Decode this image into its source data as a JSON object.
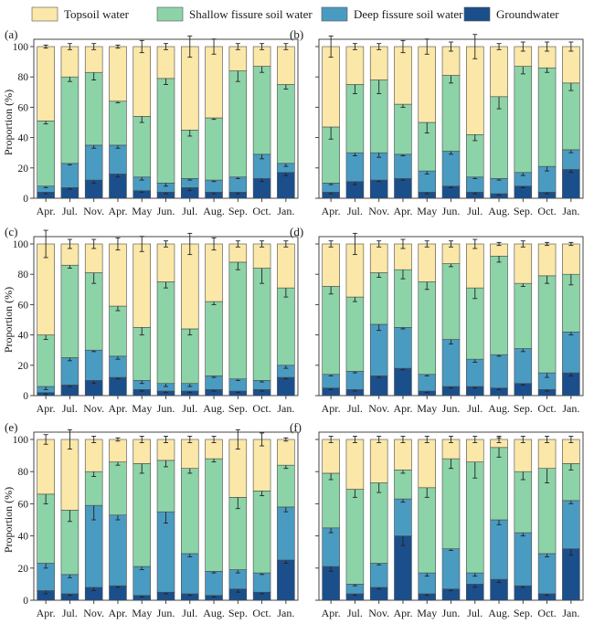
{
  "legend": {
    "items": [
      {
        "name": "Topsoil water",
        "color": "#FBE7A7"
      },
      {
        "name": "Shallow fissure soil water",
        "color": "#8DD3A8"
      },
      {
        "name": "Deep fissure soil water",
        "color": "#4A9BC1"
      },
      {
        "name": "Groundwater",
        "color": "#1B4F8C"
      }
    ]
  },
  "ylabel": "Proportion (%)",
  "categories": [
    "Apr.",
    "Jul.",
    "Nov.",
    "Apr.",
    "May",
    "Jun.",
    "Jul.",
    "Aug.",
    "Sep.",
    "Oct.",
    "Jan."
  ],
  "yticks": [
    "0",
    "20",
    "40",
    "60",
    "80",
    "100"
  ],
  "chart_data": [
    {
      "type": "bar",
      "stacked": true,
      "panel_label": "(a)",
      "ylim": [
        0,
        100
      ],
      "categories": [
        "Apr.",
        "Jul.",
        "Nov.",
        "Apr.",
        "May",
        "Jun.",
        "Jul.",
        "Aug.",
        "Sep.",
        "Oct.",
        "Jan."
      ],
      "series": [
        {
          "name": "Groundwater",
          "values": [
            4,
            7,
            12,
            16,
            5,
            4,
            7,
            4,
            4,
            13,
            17
          ],
          "errors": [
            1,
            1,
            2,
            2,
            1,
            1,
            2,
            1,
            1,
            2,
            2
          ]
        },
        {
          "name": "Deep fissure soil water",
          "values": [
            4,
            16,
            23,
            19,
            9,
            6,
            6,
            8,
            10,
            16,
            6
          ],
          "errors": [
            1,
            1,
            2,
            2,
            2,
            2,
            1,
            1,
            1,
            3,
            2
          ]
        },
        {
          "name": "Shallow fissure soil water",
          "values": [
            43,
            57,
            48,
            29,
            40,
            69,
            32,
            41,
            70,
            58,
            52
          ],
          "errors": [
            2,
            3,
            5,
            1,
            4,
            4,
            4,
            1,
            7,
            4,
            3
          ]
        },
        {
          "name": "Topsoil water",
          "values": [
            49,
            20,
            17,
            36,
            46,
            21,
            55,
            47,
            16,
            13,
            25
          ],
          "errors": [
            1,
            2,
            2,
            1,
            4,
            2,
            7,
            5,
            2,
            2,
            2
          ]
        }
      ]
    },
    {
      "type": "bar",
      "stacked": true,
      "panel_label": "(b)",
      "ylim": [
        0,
        100
      ],
      "categories": [
        "Apr.",
        "Jul.",
        "Nov.",
        "Apr.",
        "May",
        "Jun.",
        "Jul.",
        "Aug.",
        "Sep.",
        "Oct.",
        "Jan."
      ],
      "series": [
        {
          "name": "Groundwater",
          "values": [
            4,
            11,
            12,
            13,
            4,
            8,
            4,
            3,
            8,
            4,
            19
          ],
          "errors": [
            1,
            2,
            1,
            1,
            1,
            1,
            1,
            1,
            1,
            1,
            2
          ]
        },
        {
          "name": "Deep fissure soil water",
          "values": [
            6,
            19,
            18,
            16,
            14,
            23,
            10,
            10,
            9,
            17,
            13
          ],
          "errors": [
            1,
            2,
            3,
            1,
            2,
            2,
            1,
            1,
            2,
            3,
            2
          ]
        },
        {
          "name": "Shallow fissure soil water",
          "values": [
            37,
            45,
            48,
            33,
            32,
            50,
            28,
            54,
            70,
            65,
            44
          ],
          "errors": [
            8,
            6,
            9,
            2,
            7,
            5,
            4,
            8,
            5,
            3,
            5
          ]
        },
        {
          "name": "Topsoil water",
          "values": [
            53,
            25,
            22,
            38,
            50,
            19,
            58,
            33,
            13,
            14,
            24
          ],
          "errors": [
            7,
            2,
            2,
            4,
            5,
            3,
            8,
            2,
            3,
            3,
            3
          ]
        }
      ]
    },
    {
      "type": "bar",
      "stacked": true,
      "panel_label": "(c)",
      "ylim": [
        0,
        100
      ],
      "categories": [
        "Apr.",
        "Jul.",
        "Nov.",
        "Apr.",
        "May",
        "Jun.",
        "Jul.",
        "Aug.",
        "Sep.",
        "Oct.",
        "Jan."
      ],
      "series": [
        {
          "name": "Groundwater",
          "values": [
            2,
            7,
            10,
            12,
            4,
            3,
            3,
            4,
            3,
            4,
            12
          ],
          "errors": [
            1,
            1,
            2,
            1,
            1,
            1,
            1,
            1,
            1,
            1,
            1
          ]
        },
        {
          "name": "Deep fissure soil water",
          "values": [
            4,
            18,
            20,
            14,
            6,
            5,
            5,
            9,
            8,
            6,
            8
          ],
          "errors": [
            2,
            2,
            1,
            2,
            2,
            2,
            2,
            1,
            1,
            1,
            2
          ]
        },
        {
          "name": "Shallow fissure soil water",
          "values": [
            34,
            61,
            51,
            33,
            35,
            67,
            36,
            49,
            77,
            74,
            51
          ],
          "errors": [
            3,
            2,
            7,
            3,
            5,
            4,
            4,
            2,
            5,
            10,
            6
          ]
        },
        {
          "name": "Topsoil water",
          "values": [
            60,
            14,
            19,
            41,
            55,
            25,
            56,
            38,
            12,
            16,
            29
          ],
          "errors": [
            9,
            3,
            3,
            4,
            5,
            2,
            7,
            4,
            2,
            2,
            2
          ]
        }
      ]
    },
    {
      "type": "bar",
      "stacked": true,
      "panel_label": "(d)",
      "ylim": [
        0,
        100
      ],
      "categories": [
        "Apr.",
        "Jul.",
        "Nov.",
        "Apr.",
        "May",
        "Jun.",
        "Jul.",
        "Aug.",
        "Sep.",
        "Oct.",
        "Jan."
      ],
      "series": [
        {
          "name": "Groundwater",
          "values": [
            5,
            4,
            13,
            18,
            3,
            6,
            6,
            5,
            8,
            4,
            15
          ],
          "errors": [
            1,
            1,
            1,
            1,
            1,
            1,
            1,
            1,
            1,
            1,
            2
          ]
        },
        {
          "name": "Deep fissure soil water",
          "values": [
            9,
            12,
            34,
            27,
            11,
            31,
            18,
            22,
            23,
            11,
            27
          ],
          "errors": [
            1,
            1,
            4,
            1,
            1,
            3,
            2,
            1,
            2,
            3,
            2
          ]
        },
        {
          "name": "Shallow fissure soil water",
          "values": [
            58,
            49,
            34,
            38,
            61,
            50,
            47,
            65,
            43,
            64,
            38
          ],
          "errors": [
            5,
            3,
            3,
            6,
            5,
            2,
            7,
            4,
            2,
            5,
            7
          ]
        },
        {
          "name": "Topsoil water",
          "values": [
            28,
            35,
            19,
            17,
            25,
            13,
            29,
            8,
            26,
            21,
            20
          ],
          "errors": [
            2,
            7,
            2,
            3,
            2,
            2,
            3,
            1,
            2,
            1,
            1
          ]
        }
      ]
    },
    {
      "type": "bar",
      "stacked": true,
      "panel_label": "(e)",
      "ylim": [
        0,
        100
      ],
      "categories": [
        "Apr.",
        "Jul.",
        "Nov.",
        "Apr.",
        "May",
        "Jun.",
        "Jul.",
        "Aug.",
        "Sep.",
        "Oct.",
        "Jan."
      ],
      "series": [
        {
          "name": "Groundwater",
          "values": [
            6,
            4,
            8,
            9,
            3,
            5,
            4,
            3,
            7,
            5,
            25
          ],
          "errors": [
            2,
            1,
            2,
            1,
            1,
            1,
            1,
            1,
            2,
            1,
            2
          ]
        },
        {
          "name": "Deep fissure soil water",
          "values": [
            17,
            12,
            51,
            44,
            18,
            50,
            25,
            15,
            12,
            12,
            33
          ],
          "errors": [
            3,
            2,
            9,
            3,
            2,
            7,
            2,
            1,
            2,
            1,
            3
          ]
        },
        {
          "name": "Shallow fissure soil water",
          "values": [
            43,
            40,
            21,
            33,
            64,
            32,
            53,
            70,
            45,
            51,
            26
          ],
          "errors": [
            6,
            7,
            3,
            2,
            6,
            4,
            3,
            2,
            7,
            3,
            2
          ]
        },
        {
          "name": "Topsoil water",
          "values": [
            34,
            44,
            20,
            14,
            15,
            13,
            18,
            12,
            36,
            32,
            16
          ],
          "errors": [
            3,
            6,
            2,
            1,
            2,
            2,
            2,
            2,
            6,
            4,
            1
          ]
        }
      ]
    },
    {
      "type": "bar",
      "stacked": true,
      "panel_label": "(f)",
      "ylim": [
        0,
        100
      ],
      "categories": [
        "Apr.",
        "Jul.",
        "Nov.",
        "Apr.",
        "May",
        "Jun.",
        "Jul.",
        "Aug.",
        "Sep.",
        "Oct.",
        "Jan."
      ],
      "series": [
        {
          "name": "Groundwater",
          "values": [
            21,
            4,
            8,
            40,
            4,
            7,
            10,
            13,
            9,
            4,
            32
          ],
          "errors": [
            3,
            1,
            1,
            6,
            1,
            1,
            2,
            2,
            1,
            1,
            4
          ]
        },
        {
          "name": "Deep fissure soil water",
          "values": [
            24,
            6,
            15,
            23,
            13,
            25,
            7,
            37,
            33,
            25,
            30
          ],
          "errors": [
            3,
            1,
            1,
            2,
            2,
            1,
            2,
            3,
            2,
            2,
            2
          ]
        },
        {
          "name": "Shallow fissure soil water",
          "values": [
            34,
            59,
            50,
            18,
            53,
            56,
            69,
            45,
            38,
            53,
            23
          ],
          "errors": [
            4,
            5,
            6,
            2,
            6,
            6,
            10,
            6,
            5,
            9,
            4
          ]
        },
        {
          "name": "Topsoil water",
          "values": [
            21,
            31,
            27,
            19,
            30,
            12,
            14,
            5,
            20,
            18,
            15
          ],
          "errors": [
            2,
            2,
            2,
            2,
            2,
            2,
            2,
            2,
            2,
            2,
            2
          ]
        }
      ]
    }
  ]
}
